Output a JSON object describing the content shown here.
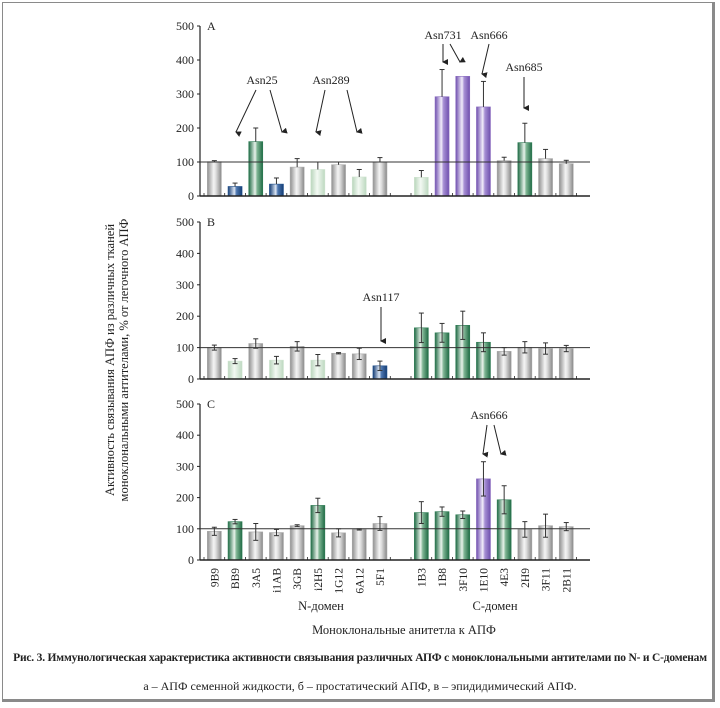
{
  "figure": {
    "caption_title": "Рис. 3. Иммунологическая характеристика активности связывания различных АПФ с моноклональными антителами по N- и С-доменам",
    "caption_legend": "а – АПФ семенной жидкости, б – простатический АПФ, в – эпидидимический АПФ.",
    "ylabel_line1": "Активность связывания АПФ из различных тканей",
    "ylabel_line2": "моноклональными антителами, % от легочного АПФ",
    "xlabel": "Моноклональные анитетла к АПФ",
    "group_labels": [
      "N-домен",
      "С-домен"
    ]
  },
  "colors": {
    "gray": "#a9a9a9",
    "light_green": "#cfe3d0",
    "green": "#2f7d55",
    "blue": "#1f4f8c",
    "purple": "#8a6cc0",
    "axis": "#222222"
  },
  "chart_data": [
    {
      "type": "bar",
      "panel": "A",
      "ylim": [
        0,
        500
      ],
      "yticks": [
        "0",
        "100",
        "200",
        "300",
        "400",
        "500"
      ],
      "reference_line": 100,
      "categories": [
        "9B9",
        "BB9",
        "3A5",
        "i1AB",
        "3GB",
        "i2H5",
        "1G12",
        "6A12",
        "5F1",
        "1B3",
        "1B8",
        "3F10",
        "1E10",
        "4E3",
        "2H9",
        "3F11",
        "2B11"
      ],
      "values": [
        101,
        28,
        160,
        35,
        85,
        78,
        92,
        56,
        100,
        55,
        292,
        352,
        262,
        104,
        157,
        110,
        95
      ],
      "errors": [
        3,
        10,
        40,
        18,
        25,
        22,
        8,
        22,
        13,
        20,
        80,
        0,
        75,
        10,
        57,
        27,
        10
      ],
      "bar_colors": [
        "gray",
        "blue",
        "green",
        "blue",
        "gray",
        "light_green",
        "gray",
        "light_green",
        "gray",
        "light_green",
        "purple",
        "purple",
        "purple",
        "gray",
        "green",
        "gray",
        "gray"
      ],
      "annotations": [
        {
          "label": "Asn25",
          "targets": [
            "BB9",
            "i1AB"
          ]
        },
        {
          "label": "Asn289",
          "targets": [
            "i2H5",
            "6A12"
          ]
        },
        {
          "label": "Asn731",
          "targets": [
            "1B8",
            "3F10"
          ]
        },
        {
          "label": "Asn666",
          "targets": [
            "1E10"
          ]
        },
        {
          "label": "Asn685",
          "targets": [
            "2H9"
          ]
        }
      ]
    },
    {
      "type": "bar",
      "panel": "B",
      "ylim": [
        0,
        500
      ],
      "yticks": [
        "0",
        "100",
        "200",
        "300",
        "400",
        "500"
      ],
      "reference_line": 100,
      "categories": [
        "9B9",
        "BB9",
        "3A5",
        "i1AB",
        "3GB",
        "i2H5",
        "1G12",
        "6A12",
        "5F1",
        "1B3",
        "1B8",
        "3F10",
        "1E10",
        "4E3",
        "2H9",
        "3F11",
        "2B11"
      ],
      "values": [
        100,
        57,
        113,
        60,
        104,
        60,
        82,
        80,
        42,
        163,
        147,
        171,
        117,
        88,
        101,
        97,
        97
      ],
      "errors": [
        8,
        8,
        15,
        12,
        15,
        18,
        2,
        18,
        15,
        47,
        30,
        45,
        30,
        12,
        18,
        18,
        10
      ],
      "bar_colors": [
        "gray",
        "light_green",
        "gray",
        "light_green",
        "gray",
        "light_green",
        "gray",
        "gray",
        "blue",
        "green",
        "green",
        "green",
        "green",
        "gray",
        "gray",
        "gray",
        "gray"
      ],
      "annotations": [
        {
          "label": "Asn117",
          "targets": [
            "5F1"
          ]
        }
      ]
    },
    {
      "type": "bar",
      "panel": "C",
      "ylim": [
        0,
        500
      ],
      "yticks": [
        "0",
        "100",
        "200",
        "300",
        "400",
        "500"
      ],
      "reference_line": 100,
      "categories": [
        "9B9",
        "BB9",
        "3A5",
        "i1AB",
        "3GB",
        "i2H5",
        "1G12",
        "6A12",
        "5F1",
        "1B3",
        "1B8",
        "3F10",
        "1E10",
        "4E3",
        "2H9",
        "3F11",
        "2B11"
      ],
      "values": [
        92,
        123,
        90,
        88,
        110,
        175,
        87,
        98,
        117,
        152,
        155,
        145,
        260,
        193,
        98,
        110,
        107
      ],
      "errors": [
        13,
        7,
        27,
        10,
        3,
        23,
        13,
        2,
        22,
        35,
        15,
        12,
        55,
        45,
        25,
        37,
        13
      ],
      "bar_colors": [
        "gray",
        "green",
        "gray",
        "gray",
        "gray",
        "green",
        "gray",
        "gray",
        "gray",
        "green",
        "green",
        "green",
        "purple",
        "green",
        "gray",
        "gray",
        "gray"
      ],
      "annotations": [
        {
          "label": "Asn666",
          "targets": [
            "1E10",
            "4E3"
          ]
        }
      ]
    }
  ]
}
